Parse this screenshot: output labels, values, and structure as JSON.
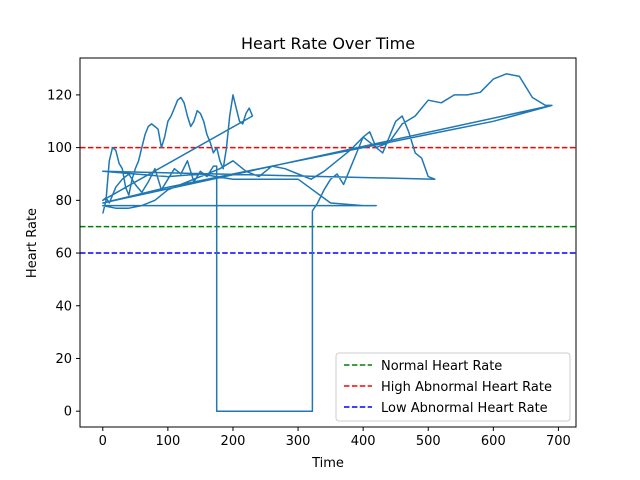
{
  "chart_data": {
    "type": "line",
    "title": "Heart Rate Over Time",
    "xlabel": "Time",
    "ylabel": "Heart Rate",
    "xlim": [
      -35,
      727
    ],
    "ylim": [
      -6,
      134
    ],
    "xticks": [
      0,
      100,
      200,
      300,
      400,
      500,
      600,
      700
    ],
    "yticks": [
      0,
      20,
      40,
      60,
      80,
      100,
      120
    ],
    "grid": false,
    "legend_position": "lower-right",
    "series": [
      {
        "color": "#1f77b4",
        "style": "solid",
        "x": [
          0,
          5,
          10,
          15,
          20,
          25,
          30,
          35,
          40,
          45,
          50,
          55,
          60,
          65,
          70,
          75,
          80,
          85,
          90,
          95,
          100,
          105,
          110,
          115,
          120,
          125,
          130,
          135,
          140,
          145,
          150,
          155,
          160,
          165,
          170,
          175,
          180,
          185,
          190,
          195,
          200,
          205,
          210,
          215,
          220,
          225,
          230,
          0,
          5,
          10,
          20,
          30,
          40,
          50,
          60,
          70,
          80,
          90,
          100,
          110,
          120,
          130,
          140,
          150,
          160,
          170,
          175,
          175,
          200,
          250,
          300,
          322,
          322,
          330,
          340,
          350,
          360,
          370,
          380,
          390,
          400,
          410,
          420,
          430,
          440,
          450,
          460,
          470,
          480,
          490,
          500,
          510,
          0,
          50,
          100,
          150,
          200,
          250,
          300,
          350,
          400,
          420,
          0,
          20,
          40,
          60,
          80,
          100,
          120,
          140,
          160,
          180,
          200,
          220,
          240,
          260,
          280,
          300,
          320,
          340,
          360,
          380,
          400,
          420,
          440,
          460,
          480,
          500,
          520,
          540,
          560,
          580,
          600,
          620,
          640,
          660,
          680,
          690,
          0,
          100,
          200,
          300,
          400,
          500,
          600,
          690
        ],
        "y": [
          75,
          80,
          95,
          100,
          99,
          94,
          92,
          85,
          82,
          88,
          92,
          95,
          100,
          105,
          108,
          109,
          108,
          107,
          100,
          104,
          110,
          112,
          115,
          118,
          119,
          117,
          112,
          108,
          110,
          114,
          113,
          110,
          105,
          102,
          98,
          100,
          95,
          92,
          100,
          112,
          120,
          115,
          110,
          109,
          113,
          115,
          112,
          80,
          81,
          79,
          85,
          88,
          90,
          86,
          83,
          87,
          92,
          84,
          88,
          92,
          90,
          95,
          87,
          91,
          89,
          93,
          93,
          0,
          0,
          0,
          0,
          0,
          76,
          79,
          84,
          88,
          90,
          86,
          92,
          98,
          104,
          106,
          100,
          98,
          104,
          110,
          112,
          106,
          98,
          96,
          89,
          88,
          91,
          90,
          89,
          90,
          88,
          88,
          88,
          79,
          78,
          78,
          78,
          77,
          77,
          78,
          80,
          84,
          86,
          88,
          90,
          92,
          95,
          91,
          89,
          93,
          92,
          90,
          88,
          91,
          95,
          99,
          104,
          100,
          102,
          109,
          112,
          118,
          117,
          120,
          120,
          121,
          126,
          128,
          127,
          119,
          116,
          116,
          79,
          85,
          90,
          95,
          100,
          105,
          110,
          116
        ]
      }
    ],
    "reference_lines": [
      {
        "name": "Normal Heart Rate",
        "y": 70,
        "color": "#008000",
        "style": "dashed"
      },
      {
        "name": "High Abnormal Heart Rate",
        "y": 100,
        "color": "#ff0000",
        "style": "dashed"
      },
      {
        "name": "Low Abnormal Heart Rate",
        "y": 60,
        "color": "#0000ff",
        "style": "dashed"
      }
    ]
  }
}
